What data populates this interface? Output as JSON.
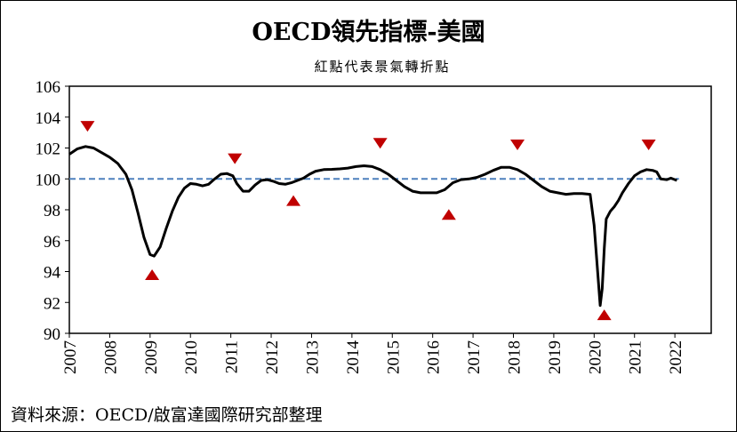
{
  "chart_data": {
    "type": "line",
    "title": "OECD領先指標-美國",
    "subtitle": "紅點代表景氣轉折點",
    "source": "資料來源：OECD/啟富達國際研究部整理",
    "xlabel": "",
    "ylabel": "",
    "xlim": [
      2007.0,
      2022.9
    ],
    "ylim": [
      90,
      106
    ],
    "y_ticks": [
      "90",
      "92",
      "94",
      "96",
      "98",
      "100",
      "102",
      "104",
      "106"
    ],
    "x_ticks": [
      "2007",
      "2008",
      "2009",
      "2010",
      "2011",
      "2012",
      "2013",
      "2014",
      "2015",
      "2016",
      "2017",
      "2018",
      "2019",
      "2020",
      "2021",
      "2022"
    ],
    "grid": false,
    "reference_line": {
      "y": 100,
      "style": "dashed",
      "color": "#4f81bd"
    },
    "series": [
      {
        "color": "#000000",
        "x": [
          2007.0,
          2007.2,
          2007.4,
          2007.6,
          2007.8,
          2008.0,
          2008.2,
          2008.4,
          2008.55,
          2008.7,
          2008.85,
          2009.0,
          2009.1,
          2009.25,
          2009.4,
          2009.55,
          2009.7,
          2009.85,
          2010.0,
          2010.15,
          2010.3,
          2010.45,
          2010.6,
          2010.75,
          2010.9,
          2011.05,
          2011.15,
          2011.3,
          2011.45,
          2011.6,
          2011.75,
          2011.9,
          2012.05,
          2012.2,
          2012.35,
          2012.5,
          2012.65,
          2012.8,
          2012.95,
          2013.1,
          2013.3,
          2013.5,
          2013.7,
          2013.9,
          2014.1,
          2014.3,
          2014.5,
          2014.7,
          2014.9,
          2015.1,
          2015.3,
          2015.5,
          2015.7,
          2015.9,
          2016.1,
          2016.3,
          2016.5,
          2016.7,
          2016.9,
          2017.1,
          2017.3,
          2017.5,
          2017.7,
          2017.9,
          2018.1,
          2018.3,
          2018.5,
          2018.7,
          2018.9,
          2019.1,
          2019.3,
          2019.5,
          2019.7,
          2019.9,
          2020.0,
          2020.1,
          2020.15,
          2020.2,
          2020.25,
          2020.3,
          2020.4,
          2020.5,
          2020.6,
          2020.7,
          2020.85,
          2021.0,
          2021.15,
          2021.3,
          2021.45,
          2021.55,
          2021.65,
          2021.8,
          2021.9,
          2022.0,
          2022.05
        ],
        "y": [
          101.6,
          101.95,
          102.1,
          102.0,
          101.7,
          101.4,
          101.0,
          100.3,
          99.3,
          97.8,
          96.2,
          95.1,
          95.0,
          95.6,
          96.8,
          97.9,
          98.8,
          99.4,
          99.7,
          99.65,
          99.55,
          99.65,
          100.0,
          100.3,
          100.35,
          100.2,
          99.7,
          99.2,
          99.2,
          99.6,
          99.9,
          99.95,
          99.85,
          99.7,
          99.65,
          99.75,
          99.9,
          100.05,
          100.3,
          100.5,
          100.6,
          100.62,
          100.65,
          100.7,
          100.8,
          100.85,
          100.8,
          100.6,
          100.3,
          99.9,
          99.5,
          99.2,
          99.1,
          99.1,
          99.1,
          99.3,
          99.75,
          99.95,
          100.0,
          100.1,
          100.3,
          100.55,
          100.75,
          100.75,
          100.6,
          100.3,
          99.9,
          99.5,
          99.2,
          99.1,
          99.0,
          99.05,
          99.05,
          99.0,
          97.0,
          93.5,
          91.8,
          92.9,
          95.5,
          97.4,
          97.9,
          98.2,
          98.6,
          99.1,
          99.7,
          100.2,
          100.45,
          100.6,
          100.55,
          100.45,
          100.0,
          99.95,
          100.05,
          99.95,
          99.9
        ]
      }
    ],
    "turning_points": [
      {
        "type": "peak",
        "x": 2007.45,
        "y": 103.4
      },
      {
        "type": "trough",
        "x": 2009.05,
        "y": 93.8
      },
      {
        "type": "peak",
        "x": 2011.1,
        "y": 101.3
      },
      {
        "type": "trough",
        "x": 2012.55,
        "y": 98.6
      },
      {
        "type": "peak",
        "x": 2014.7,
        "y": 102.3
      },
      {
        "type": "trough",
        "x": 2016.4,
        "y": 97.7
      },
      {
        "type": "peak",
        "x": 2018.1,
        "y": 102.2
      },
      {
        "type": "trough",
        "x": 2020.25,
        "y": 91.2
      },
      {
        "type": "peak",
        "x": 2021.35,
        "y": 102.2
      }
    ],
    "marker_color": "#c00000"
  }
}
